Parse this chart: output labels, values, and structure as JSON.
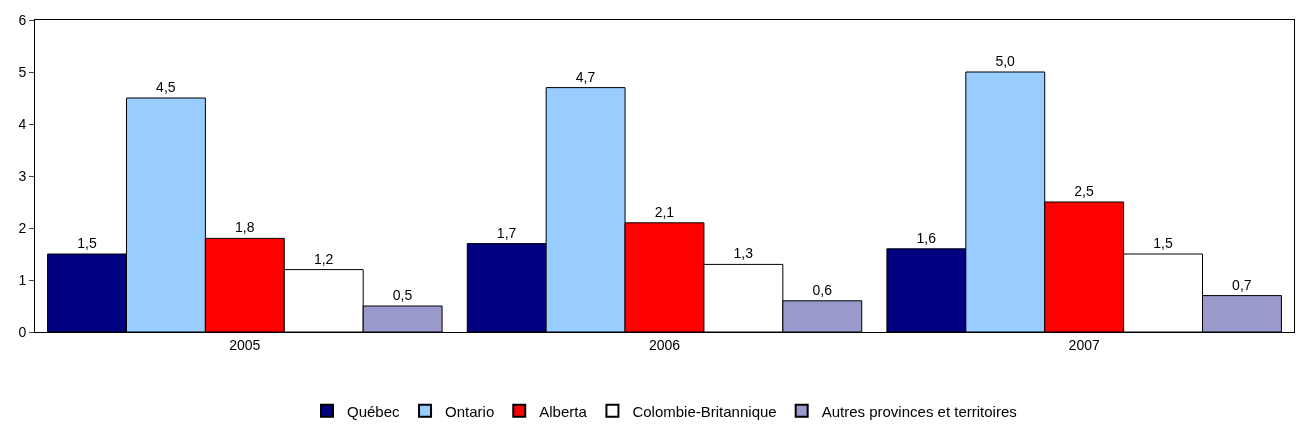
{
  "chart_data": {
    "type": "bar",
    "categories": [
      "2005",
      "2006",
      "2007"
    ],
    "series": [
      {
        "name": "Québec",
        "color": "#000080",
        "values": [
          1.5,
          1.7,
          1.6
        ],
        "value_labels": [
          "1,5",
          "1,7",
          "1,6"
        ]
      },
      {
        "name": "Ontario",
        "color": "#99ccff",
        "values": [
          4.5,
          4.7,
          5.0
        ],
        "value_labels": [
          "4,5",
          "4,7",
          "5,0"
        ]
      },
      {
        "name": "Alberta",
        "color": "#ff0000",
        "values": [
          1.8,
          2.1,
          2.5
        ],
        "value_labels": [
          "1,8",
          "2,1",
          "2,5"
        ]
      },
      {
        "name": "Colombie-Britannique",
        "color": "#ffffff",
        "values": [
          1.2,
          1.3,
          1.5
        ],
        "value_labels": [
          "1,2",
          "1,3",
          "1,5"
        ]
      },
      {
        "name": "Autres provinces et territoires",
        "color": "#9999cc",
        "values": [
          0.5,
          0.6,
          0.7
        ],
        "value_labels": [
          "0,5",
          "0,6",
          "0,7"
        ]
      }
    ],
    "ylim": [
      0,
      6
    ],
    "yticks": [
      0,
      1,
      2,
      3,
      4,
      5,
      6
    ],
    "legend": "bottom"
  }
}
